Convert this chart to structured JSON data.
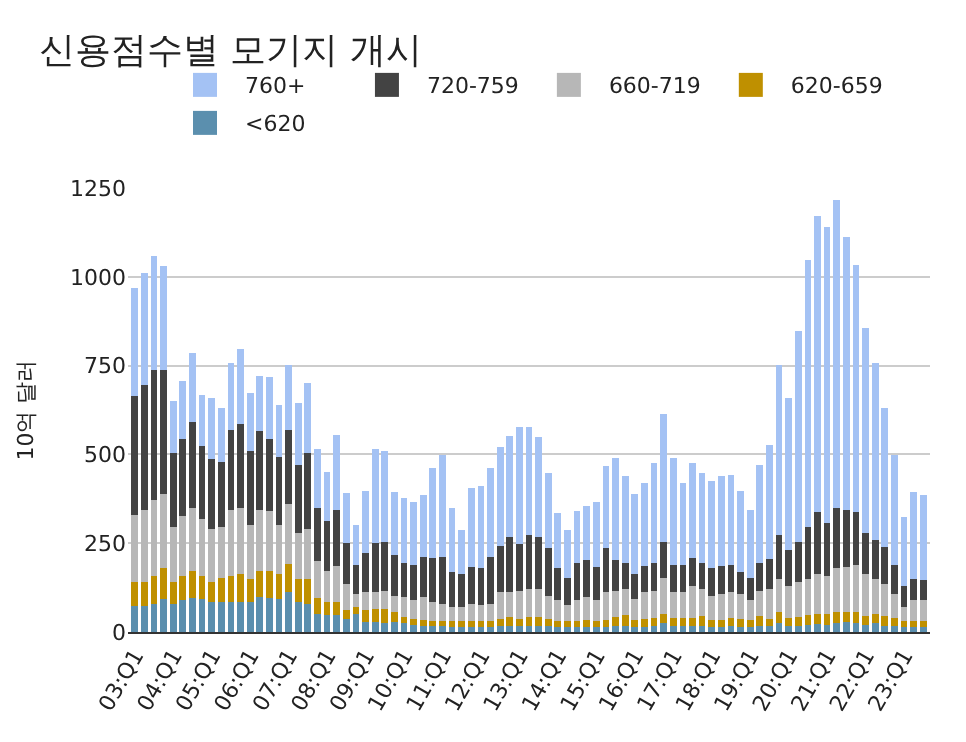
{
  "chart_data": {
    "type": "bar",
    "stacked": true,
    "title": "신용점수별 모기지 개시",
    "ylabel": "10억 달러",
    "categories": [
      "03:Q1",
      null,
      null,
      null,
      "04:Q1",
      null,
      null,
      null,
      "05:Q1",
      null,
      null,
      null,
      "06:Q1",
      null,
      null,
      null,
      "07:Q1",
      null,
      null,
      null,
      "08:Q1",
      null,
      null,
      null,
      "09:Q1",
      null,
      null,
      null,
      "10:Q1",
      null,
      null,
      null,
      "11:Q1",
      null,
      null,
      null,
      "12:Q1",
      null,
      null,
      null,
      "13:Q1",
      null,
      null,
      null,
      "14:Q1",
      null,
      null,
      null,
      "15:Q1",
      null,
      null,
      null,
      "16:Q1",
      null,
      null,
      null,
      "17:Q1",
      null,
      null,
      null,
      "18:Q1",
      null,
      null,
      null,
      "19:Q1",
      null,
      null,
      null,
      "20:Q1",
      null,
      null,
      null,
      "21:Q1",
      null,
      null,
      null,
      "22:Q1",
      null,
      null,
      null,
      "23:Q1",
      null,
      null
    ],
    "series": [
      {
        "name": "<620",
        "color": "#5b8fae",
        "values": [
          72,
          72,
          80,
          92,
          80,
          90,
          95,
          92,
          85,
          85,
          85,
          85,
          85,
          100,
          95,
          92,
          112,
          85,
          80,
          52,
          48,
          48,
          38,
          50,
          28,
          28,
          24,
          28,
          24,
          20,
          18,
          17,
          17,
          15,
          15,
          15,
          15,
          15,
          17,
          18,
          17,
          18,
          18,
          17,
          15,
          15,
          15,
          15,
          15,
          15,
          17,
          18,
          15,
          15,
          18,
          24,
          18,
          18,
          18,
          18,
          15,
          15,
          17,
          15,
          15,
          18,
          18,
          24,
          18,
          18,
          20,
          22,
          20,
          24,
          28,
          24,
          20,
          24,
          18,
          17,
          15,
          15,
          15
        ]
      },
      {
        "name": "620-659",
        "color": "#bf9000",
        "values": [
          68,
          68,
          78,
          88,
          60,
          68,
          77,
          66,
          55,
          67,
          73,
          77,
          65,
          72,
          77,
          70,
          80,
          63,
          68,
          43,
          37,
          37,
          24,
          20,
          33,
          37,
          41,
          29,
          18,
          17,
          15,
          14,
          14,
          15,
          15,
          15,
          15,
          16,
          20,
          24,
          20,
          24,
          24,
          20,
          16,
          15,
          15,
          20,
          16,
          20,
          25,
          30,
          18,
          22,
          21,
          28,
          21,
          21,
          21,
          28,
          20,
          20,
          22,
          22,
          18,
          26,
          19,
          33,
          21,
          23,
          28,
          30,
          30,
          33,
          29,
          33,
          26,
          26,
          28,
          22,
          15,
          15,
          15
        ]
      },
      {
        "name": "660-719",
        "color": "#b7b7b7",
        "values": [
          190,
          205,
          214,
          208,
          156,
          170,
          178,
          160,
          150,
          144,
          187,
          188,
          150,
          173,
          168,
          138,
          168,
          132,
          142,
          105,
          87,
          100,
          73,
          37,
          51,
          47,
          51,
          44,
          56,
          52,
          65,
          54,
          48,
          40,
          40,
          49,
          46,
          48,
          75,
          70,
          79,
          78,
          78,
          64,
          58,
          46,
          59,
          63,
          58,
          77,
          74,
          72,
          61,
          75,
          77,
          101,
          73,
          73,
          90,
          74,
          66,
          72,
          73,
          70,
          56,
          72,
          83,
          92,
          90,
          99,
          101,
          110,
          107,
          124,
          127,
          133,
          116,
          99,
          89,
          68,
          40,
          59,
          59
        ]
      },
      {
        "name": "720-759",
        "color": "#434343",
        "values": [
          335,
          350,
          366,
          350,
          207,
          215,
          242,
          207,
          198,
          182,
          225,
          237,
          210,
          220,
          205,
          192,
          210,
          190,
          215,
          150,
          140,
          160,
          117,
          83,
          111,
          139,
          138,
          117,
          97,
          101,
          114,
          123,
          133,
          98,
          92,
          105,
          105,
          133,
          130,
          155,
          133,
          153,
          147,
          135,
          92,
          77,
          106,
          105,
          95,
          124,
          87,
          75,
          68,
          74,
          79,
          101,
          78,
          78,
          79,
          75,
          78,
          79,
          78,
          61,
          62,
          79,
          85,
          124,
          103,
          114,
          146,
          175,
          149,
          169,
          159,
          147,
          116,
          111,
          105,
          83,
          59,
          60,
          58
        ]
      },
      {
        "name": "760+",
        "color": "#a4c2f4",
        "values": [
          305,
          315,
          322,
          292,
          149,
          165,
          193,
          143,
          170,
          152,
          188,
          211,
          162,
          157,
          173,
          148,
          182,
          175,
          195,
          165,
          140,
          211,
          140,
          110,
          175,
          265,
          255,
          175,
          183,
          175,
          175,
          253,
          286,
          182,
          126,
          222,
          230,
          249,
          280,
          286,
          328,
          304,
          283,
          212,
          153,
          133,
          146,
          153,
          181,
          231,
          287,
          244,
          227,
          234,
          281,
          360,
          300,
          230,
          268,
          253,
          247,
          253,
          253,
          230,
          192,
          275,
          321,
          479,
          426,
          594,
          752,
          836,
          834,
          867,
          769,
          697,
          579,
          498,
          392,
          308,
          194,
          244,
          240
        ]
      }
    ],
    "ylim": [
      0,
      1250
    ],
    "yticks": [
      0,
      250,
      500,
      750,
      1000,
      1250
    ],
    "grid": "y",
    "legend": "top"
  }
}
